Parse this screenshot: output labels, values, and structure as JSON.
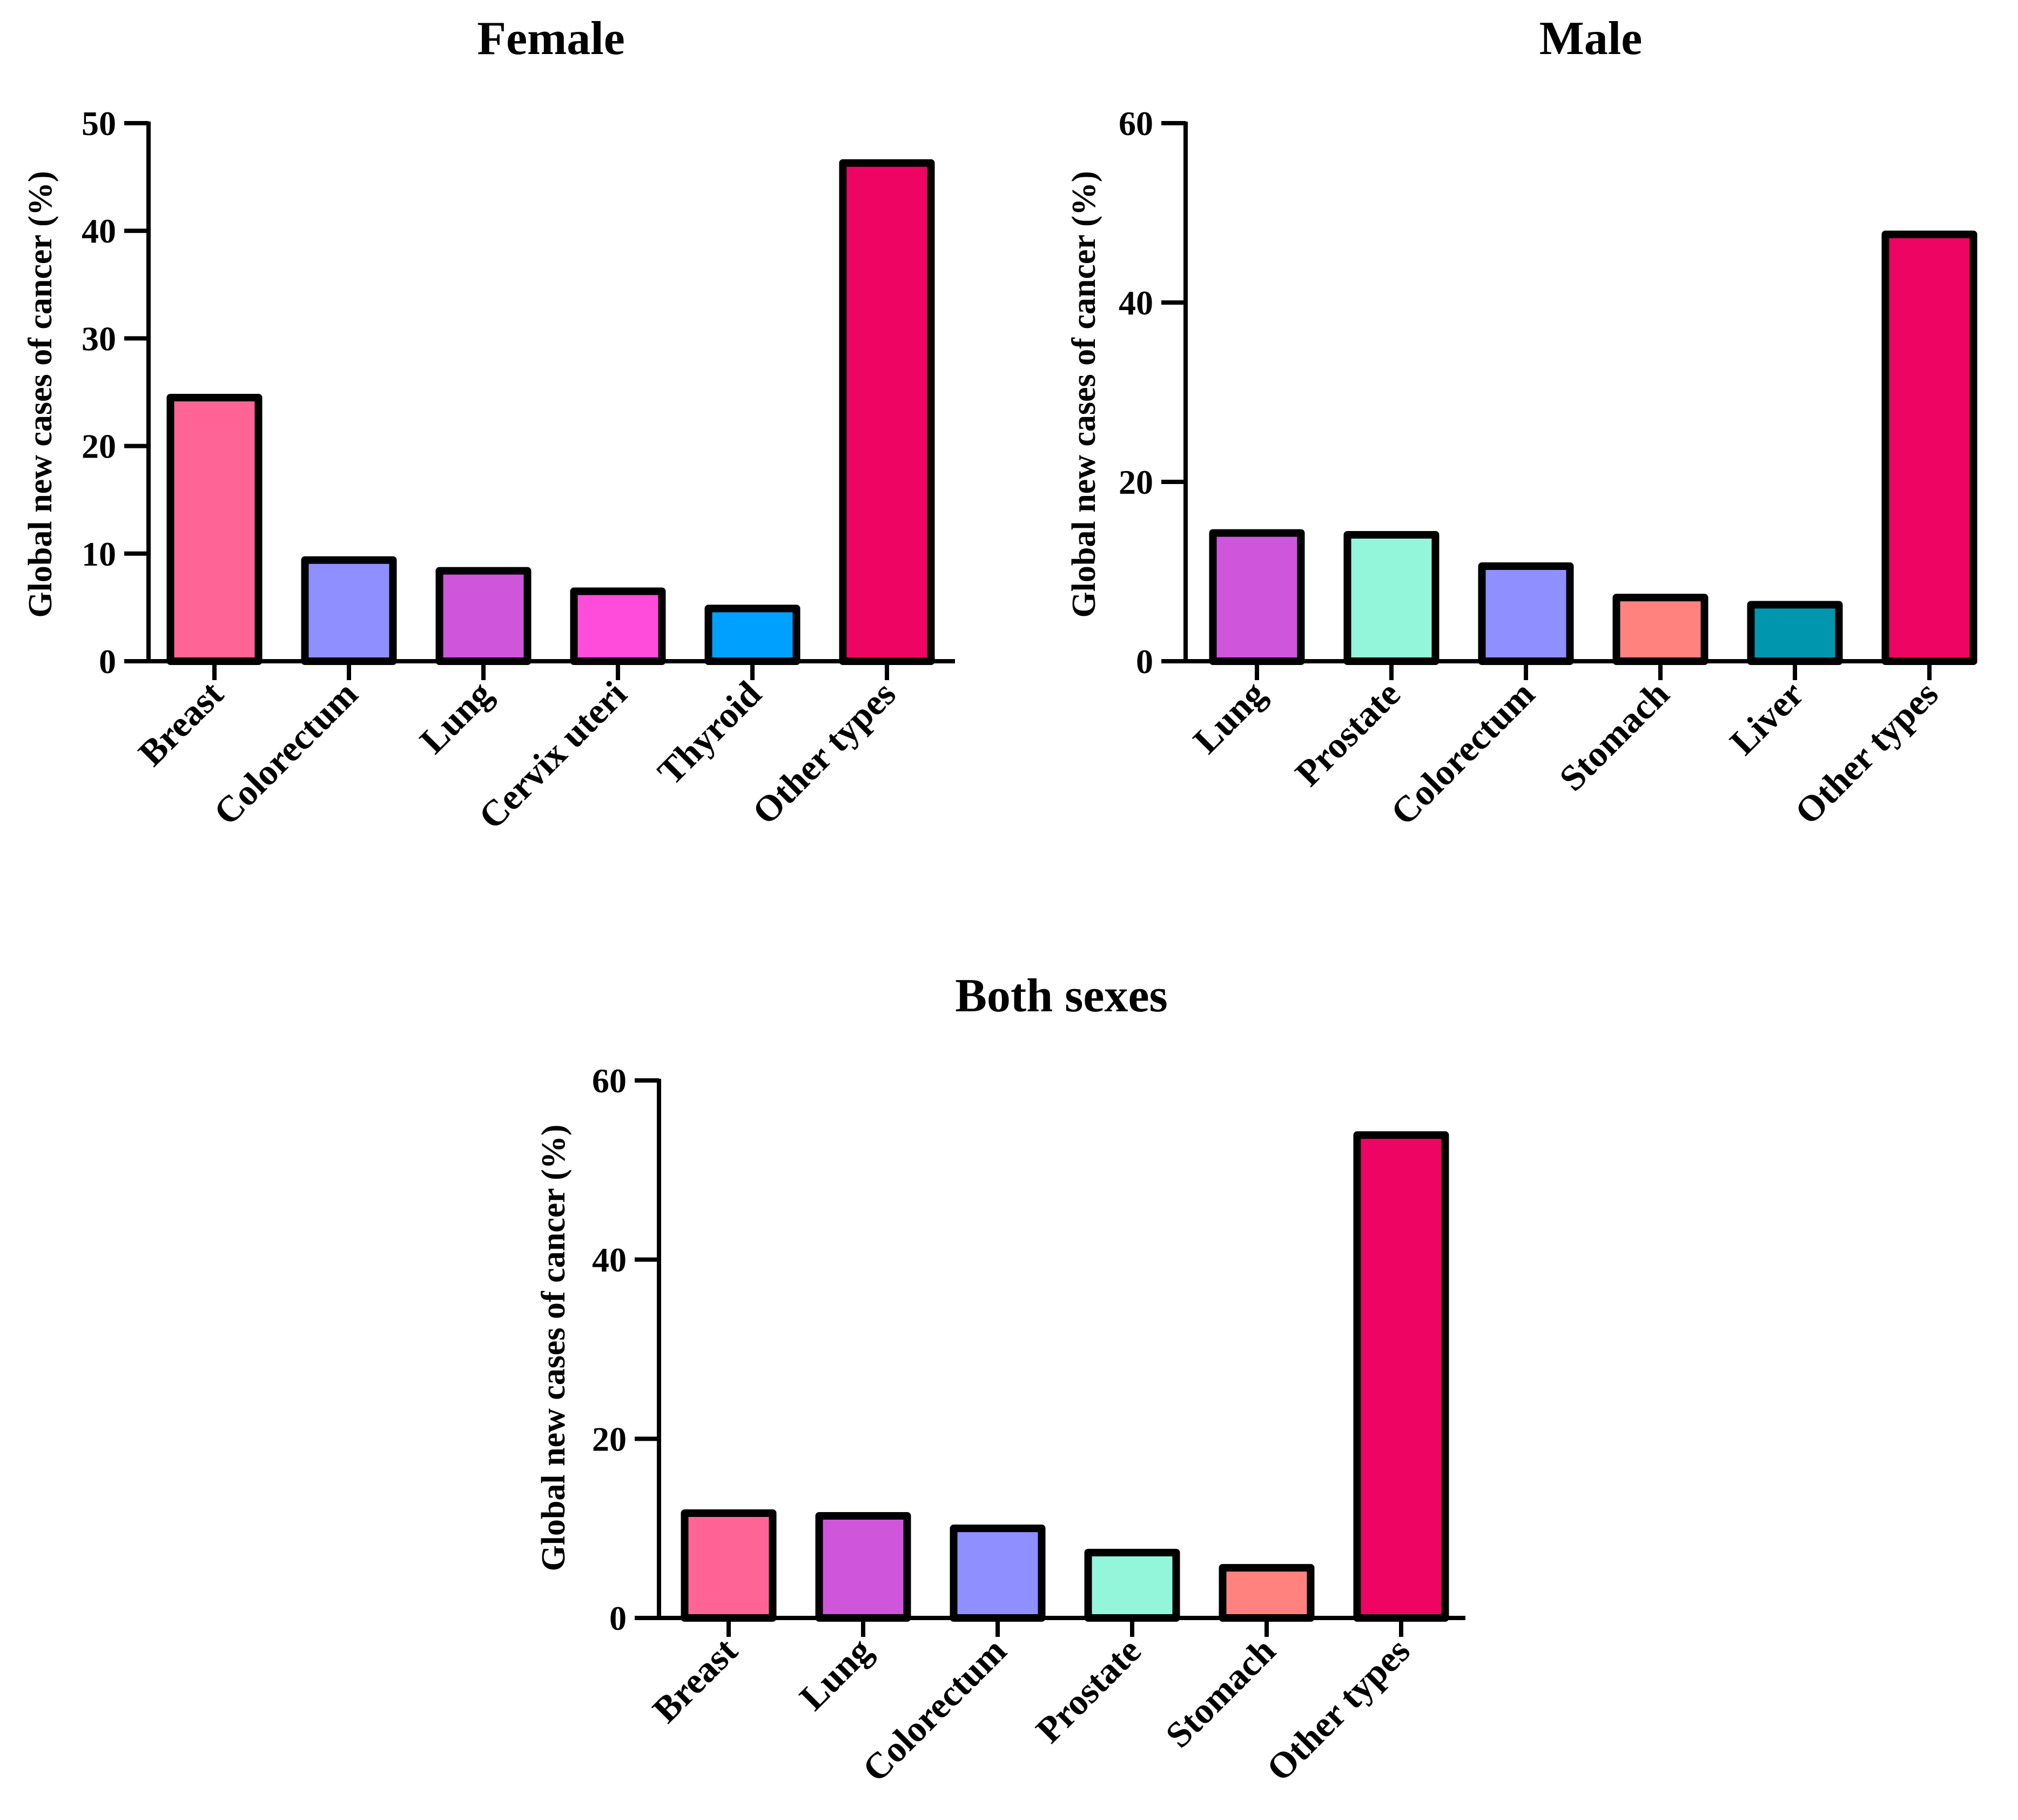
{
  "chart_data": [
    {
      "type": "bar",
      "title": "Female",
      "ylabel": "Global new cases of cancer (%)",
      "xlabel": "",
      "ylim": [
        0,
        50
      ],
      "yticks": [
        0,
        10,
        20,
        30,
        40,
        50
      ],
      "categories": [
        "Breast",
        "Colorectum",
        "Lung",
        "Cervix uteri",
        "Thyroid",
        "Other types"
      ],
      "values": [
        24.5,
        9.4,
        8.4,
        6.5,
        4.9,
        46.3
      ],
      "colors": [
        "#FF6496",
        "#8F8FFF",
        "#CF55DB",
        "#FF4CDB",
        "#00A0FF",
        "#EE0563"
      ]
    },
    {
      "type": "bar",
      "title": "Male",
      "ylabel": "Global new cases of cancer (%)",
      "xlabel": "",
      "ylim": [
        0,
        60
      ],
      "yticks": [
        0,
        20,
        40,
        60
      ],
      "categories": [
        "Lung",
        "Prostate",
        "Colorectum",
        "Stomach",
        "Liver",
        "Other types"
      ],
      "values": [
        14.3,
        14.1,
        10.6,
        7.1,
        6.3,
        47.6
      ],
      "colors": [
        "#CF55DB",
        "#93F5D9",
        "#8F8FFF",
        "#FF827E",
        "#0097AE",
        "#EE0563"
      ]
    },
    {
      "type": "bar",
      "title": "Both sexes",
      "ylabel": "Global new cases of cancer (%)",
      "xlabel": "",
      "ylim": [
        0,
        60
      ],
      "yticks": [
        0,
        20,
        40,
        60
      ],
      "categories": [
        "Breast",
        "Lung",
        "Colorectum",
        "Prostate",
        "Stomach",
        "Other types"
      ],
      "values": [
        11.7,
        11.4,
        10.0,
        7.3,
        5.6,
        53.9
      ],
      "colors": [
        "#FF6496",
        "#CF55DB",
        "#8F8FFF",
        "#93F5D9",
        "#FF827E",
        "#EE0563"
      ]
    }
  ]
}
